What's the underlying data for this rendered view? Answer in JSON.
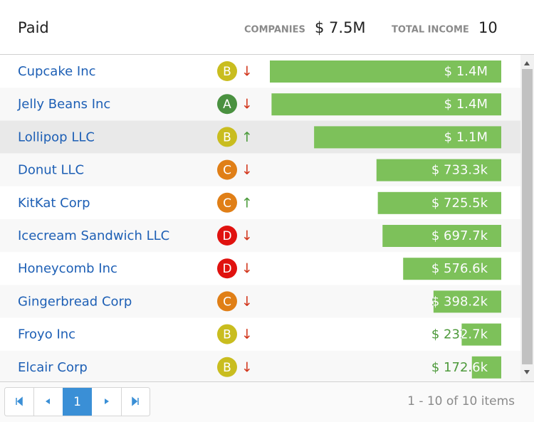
{
  "header": {
    "title": "Paid",
    "stats": [
      {
        "label": "COMPANIES",
        "value": "$ 7.5M"
      },
      {
        "label": "TOTAL INCOME",
        "value": "10"
      }
    ]
  },
  "xlim": [
    0,
    1360000
  ],
  "bar_color": "#7dc15a",
  "rows": [
    {
      "name": "Cupcake Inc",
      "grade": "B",
      "grade_color": "#c9bd1f",
      "trend": "↓",
      "trend_color": "#d2361c",
      "value": 1360000,
      "value_label": "$ 1.4M"
    },
    {
      "name": "Jelly Beans Inc",
      "grade": "A",
      "grade_color": "#4a9140",
      "trend": "↓",
      "trend_color": "#d2361c",
      "value": 1350000,
      "value_label": "$ 1.4M"
    },
    {
      "name": "Lollipop LLC",
      "grade": "B",
      "grade_color": "#c9bd1f",
      "trend": "↑",
      "trend_color": "#4a9a3a",
      "value": 1100000,
      "value_label": "$ 1.1M"
    },
    {
      "name": "Donut LLC",
      "grade": "C",
      "grade_color": "#e07f17",
      "trend": "↓",
      "trend_color": "#d2361c",
      "value": 733300,
      "value_label": "$ 733.3k"
    },
    {
      "name": "KitKat Corp",
      "grade": "C",
      "grade_color": "#e07f17",
      "trend": "↑",
      "trend_color": "#4a9a3a",
      "value": 725500,
      "value_label": "$ 725.5k"
    },
    {
      "name": "Icecream Sandwich LLC",
      "grade": "D",
      "grade_color": "#e0120f",
      "trend": "↓",
      "trend_color": "#d2361c",
      "value": 697700,
      "value_label": "$ 697.7k"
    },
    {
      "name": "Honeycomb Inc",
      "grade": "D",
      "grade_color": "#e0120f",
      "trend": "↓",
      "trend_color": "#d2361c",
      "value": 576600,
      "value_label": "$ 576.6k"
    },
    {
      "name": "Gingerbread Corp",
      "grade": "C",
      "grade_color": "#e07f17",
      "trend": "↓",
      "trend_color": "#d2361c",
      "value": 398200,
      "value_label": "$ 398.2k"
    },
    {
      "name": "Froyo Inc",
      "grade": "B",
      "grade_color": "#c9bd1f",
      "trend": "↓",
      "trend_color": "#d2361c",
      "value": 232700,
      "value_label": "$ 232.7k"
    },
    {
      "name": "Elcair Corp",
      "grade": "B",
      "grade_color": "#c9bd1f",
      "trend": "↓",
      "trend_color": "#d2361c",
      "value": 172600,
      "value_label": "$ 172.6k"
    }
  ],
  "pager": {
    "current": "1",
    "info": "1 - 10 of 10 items"
  }
}
